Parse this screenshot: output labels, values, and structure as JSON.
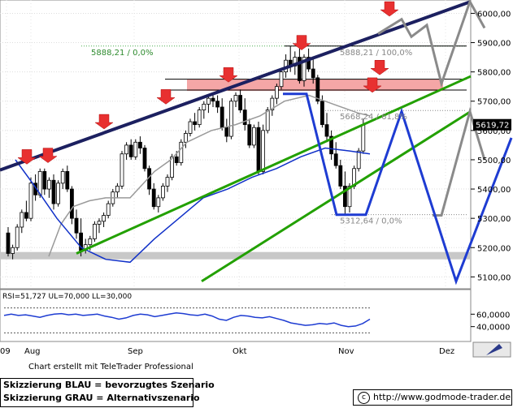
{
  "chart_data": {
    "type": "candlestick",
    "title": "",
    "ylim": [
      5065,
      6040
    ],
    "y_ticks": [
      6000,
      5900,
      5800,
      5700,
      5600,
      5500,
      5400,
      5300,
      5200,
      5100
    ],
    "y_tick_labels": [
      "6000,00",
      "5900,00",
      "5800,00",
      "5700,00",
      "5600,00",
      "5500,00",
      "5400,00",
      "5300,00",
      "5200,00",
      "5100,00"
    ],
    "x_tick_labels": [
      "09",
      "Aug",
      "Sep",
      "Okt",
      "Nov",
      "Dez"
    ],
    "last_price_label": "5619,72",
    "last_price": 5619.72,
    "grid": true,
    "candles": [
      [
        5250,
        5270,
        5170,
        5180
      ],
      [
        5180,
        5210,
        5160,
        5200
      ],
      [
        5200,
        5280,
        5190,
        5270
      ],
      [
        5270,
        5330,
        5250,
        5320
      ],
      [
        5320,
        5360,
        5290,
        5300
      ],
      [
        5300,
        5440,
        5290,
        5420
      ],
      [
        5420,
        5450,
        5360,
        5380
      ],
      [
        5380,
        5470,
        5370,
        5460
      ],
      [
        5460,
        5470,
        5380,
        5400
      ],
      [
        5400,
        5440,
        5370,
        5430
      ],
      [
        5430,
        5450,
        5330,
        5350
      ],
      [
        5350,
        5430,
        5340,
        5420
      ],
      [
        5420,
        5470,
        5400,
        5460
      ],
      [
        5460,
        5480,
        5390,
        5400
      ],
      [
        5400,
        5410,
        5280,
        5300
      ],
      [
        5300,
        5330,
        5230,
        5250
      ],
      [
        5250,
        5300,
        5170,
        5190
      ],
      [
        5190,
        5230,
        5180,
        5210
      ],
      [
        5210,
        5240,
        5190,
        5230
      ],
      [
        5230,
        5290,
        5220,
        5280
      ],
      [
        5280,
        5300,
        5250,
        5290
      ],
      [
        5290,
        5320,
        5270,
        5310
      ],
      [
        5310,
        5360,
        5300,
        5350
      ],
      [
        5350,
        5400,
        5340,
        5390
      ],
      [
        5390,
        5420,
        5370,
        5410
      ],
      [
        5410,
        5530,
        5400,
        5520
      ],
      [
        5520,
        5560,
        5500,
        5550
      ],
      [
        5550,
        5570,
        5500,
        5510
      ],
      [
        5510,
        5570,
        5500,
        5560
      ],
      [
        5560,
        5580,
        5520,
        5540
      ],
      [
        5540,
        5550,
        5460,
        5470
      ],
      [
        5470,
        5480,
        5380,
        5400
      ],
      [
        5400,
        5420,
        5330,
        5340
      ],
      [
        5340,
        5380,
        5320,
        5370
      ],
      [
        5370,
        5420,
        5360,
        5410
      ],
      [
        5410,
        5450,
        5390,
        5440
      ],
      [
        5440,
        5520,
        5430,
        5510
      ],
      [
        5510,
        5530,
        5480,
        5490
      ],
      [
        5490,
        5570,
        5480,
        5560
      ],
      [
        5560,
        5600,
        5540,
        5590
      ],
      [
        5590,
        5640,
        5580,
        5630
      ],
      [
        5630,
        5660,
        5600,
        5620
      ],
      [
        5620,
        5680,
        5610,
        5670
      ],
      [
        5670,
        5700,
        5640,
        5690
      ],
      [
        5690,
        5720,
        5660,
        5710
      ],
      [
        5710,
        5730,
        5680,
        5700
      ],
      [
        5700,
        5720,
        5660,
        5680
      ],
      [
        5680,
        5710,
        5600,
        5610
      ],
      [
        5610,
        5640,
        5560,
        5580
      ],
      [
        5580,
        5710,
        5570,
        5700
      ],
      [
        5700,
        5730,
        5680,
        5720
      ],
      [
        5720,
        5740,
        5660,
        5670
      ],
      [
        5670,
        5710,
        5600,
        5620
      ],
      [
        5620,
        5640,
        5540,
        5550
      ],
      [
        5550,
        5620,
        5540,
        5610
      ],
      [
        5610,
        5630,
        5450,
        5460
      ],
      [
        5460,
        5620,
        5450,
        5600
      ],
      [
        5600,
        5680,
        5590,
        5670
      ],
      [
        5670,
        5720,
        5650,
        5710
      ],
      [
        5710,
        5760,
        5690,
        5750
      ],
      [
        5750,
        5810,
        5740,
        5800
      ],
      [
        5800,
        5860,
        5780,
        5840
      ],
      [
        5840,
        5888,
        5800,
        5820
      ],
      [
        5820,
        5870,
        5790,
        5850
      ],
      [
        5850,
        5880,
        5760,
        5770
      ],
      [
        5770,
        5860,
        5750,
        5850
      ],
      [
        5850,
        5880,
        5800,
        5810
      ],
      [
        5810,
        5850,
        5760,
        5780
      ],
      [
        5780,
        5790,
        5690,
        5700
      ],
      [
        5700,
        5720,
        5610,
        5620
      ],
      [
        5620,
        5660,
        5560,
        5580
      ],
      [
        5580,
        5600,
        5500,
        5520
      ],
      [
        5520,
        5560,
        5470,
        5480
      ],
      [
        5480,
        5500,
        5400,
        5410
      ],
      [
        5410,
        5460,
        5313,
        5340
      ],
      [
        5340,
        5420,
        5320,
        5410
      ],
      [
        5410,
        5480,
        5400,
        5470
      ],
      [
        5470,
        5540,
        5460,
        5530
      ],
      [
        5530,
        5640,
        5520,
        5620
      ]
    ],
    "candle_x_start": 10,
    "candle_x_step": 5.6,
    "bollinger_blue": [
      [
        19,
        5500
      ],
      [
        40,
        5420
      ],
      [
        70,
        5300
      ],
      [
        100,
        5200
      ],
      [
        130,
        5160
      ],
      [
        160,
        5150
      ],
      [
        190,
        5230
      ],
      [
        220,
        5300
      ],
      [
        250,
        5370
      ],
      [
        280,
        5400
      ],
      [
        310,
        5440
      ],
      [
        340,
        5470
      ],
      [
        370,
        5510
      ],
      [
        400,
        5540
      ],
      [
        430,
        5530
      ],
      [
        455,
        5520
      ]
    ],
    "moving_avg_grey": [
      [
        60,
        5170
      ],
      [
        75,
        5280
      ],
      [
        90,
        5340
      ],
      [
        110,
        5360
      ],
      [
        130,
        5370
      ],
      [
        160,
        5370
      ],
      [
        190,
        5460
      ],
      [
        210,
        5500
      ],
      [
        230,
        5560
      ],
      [
        260,
        5600
      ],
      [
        290,
        5620
      ],
      [
        320,
        5650
      ],
      [
        350,
        5700
      ],
      [
        380,
        5720
      ],
      [
        410,
        5690
      ],
      [
        440,
        5660
      ],
      [
        455,
        5650
      ]
    ],
    "trendlines": [
      {
        "color": "#1c2060",
        "from": [
          0,
          5465
        ],
        "to": [
          579,
          6040
        ]
      },
      {
        "color": "#22a000",
        "from": [
          94,
          5180
        ],
        "to": [
          579,
          5785
        ]
      },
      {
        "color": "#22a000",
        "from": [
          248,
          5085
        ],
        "to": [
          579,
          5665
        ]
      }
    ],
    "resistance_band": {
      "low": 5735,
      "high": 5775,
      "x_from": 230,
      "x_to": 545
    },
    "support_band": {
      "low": 5160,
      "high": 5185,
      "x_from": 0,
      "x_to": 579
    },
    "hlines": [
      {
        "y": 5888.21,
        "x_from": 100,
        "x_to": 574,
        "style": "dotted",
        "color": "#4caf50"
      },
      {
        "y": 5888.21,
        "x_from": 350,
        "x_to": 574,
        "style": "solid",
        "color": "#000"
      },
      {
        "y": 5775,
        "x_from": 203,
        "x_to": 574,
        "style": "solid",
        "color": "#000"
      },
      {
        "y": 5738,
        "x_from": 203,
        "x_to": 574,
        "style": "solid",
        "color": "#000"
      },
      {
        "y": 5668.24,
        "x_from": 400,
        "x_to": 574,
        "style": "dotted",
        "color": "#888"
      },
      {
        "y": 5312.64,
        "x_from": 408,
        "x_to": 574,
        "style": "dotted",
        "color": "#888"
      }
    ],
    "level_labels": [
      {
        "text": "5888,21 / 0,0%",
        "y": 5888.21,
        "x": 112,
        "color": "#2e8b2e"
      },
      {
        "text": "5888,21 / 100,0%",
        "y": 5888.21,
        "x": 418,
        "color": "#888"
      },
      {
        "text": "5668,24 / 61,8%",
        "y": 5668.24,
        "x": 418,
        "color": "#888"
      },
      {
        "text": "5312,64 / 0,0%",
        "y": 5312.64,
        "x": 418,
        "color": "#888"
      }
    ],
    "arrows_x": [
      [
        33,
        5485
      ],
      [
        59,
        5490
      ],
      [
        128,
        5605
      ],
      [
        204,
        5690
      ],
      [
        281,
        5765
      ],
      [
        371,
        5875
      ],
      [
        458,
        5730
      ],
      [
        467,
        5790
      ],
      [
        479,
        5990
      ]
    ],
    "scenario_blue": [
      [
        348,
        5725
      ],
      [
        377,
        5725
      ],
      [
        414,
        5312
      ],
      [
        450,
        5312
      ],
      [
        494,
        5665
      ],
      [
        561,
        5085
      ],
      [
        629,
        5575
      ]
    ],
    "scenario_grey": [
      [
        465,
        5930
      ],
      [
        494,
        5980
      ],
      [
        506,
        5920
      ],
      [
        525,
        5960
      ],
      [
        543,
        5760
      ],
      [
        578,
        6040
      ],
      [
        596,
        5950
      ]
    ],
    "scenario_grey2": [
      [
        532,
        5310
      ],
      [
        543,
        5310
      ],
      [
        578,
        5665
      ],
      [
        596,
        5500
      ]
    ],
    "rsi": {
      "label": "RSI=51,727 UL=70,000 LL=30,000",
      "ticks": [
        "60,0000",
        "40,0000"
      ],
      "upper": 70,
      "lower": 30,
      "values": [
        58,
        60,
        58,
        59,
        57,
        55,
        58,
        60,
        61,
        59,
        60,
        58,
        59,
        60,
        57,
        55,
        52,
        54,
        58,
        60,
        59,
        56,
        58,
        60,
        62,
        61,
        59,
        58,
        60,
        57,
        52,
        50,
        55,
        58,
        57,
        55,
        54,
        56,
        53,
        50,
        46,
        44,
        42,
        43,
        45,
        44,
        46,
        42,
        40,
        41,
        45,
        52
      ]
    }
  },
  "credit": "Chart erstellt mit TeleTrader Professional",
  "legend": {
    "blue": "Skizzierung BLAU = bevorzugtes Szenario",
    "grey": "Skizzierung GRAU = Alternativszenario"
  },
  "url": "http://www.godmode-trader.de",
  "copyright_symbol": "c"
}
